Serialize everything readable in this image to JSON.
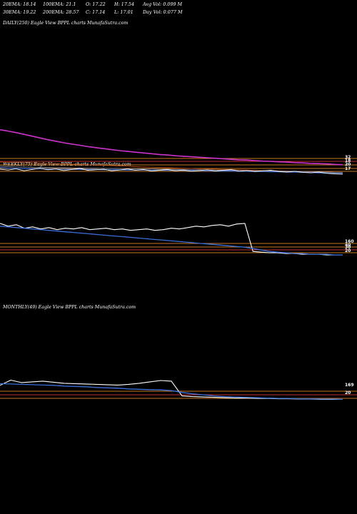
{
  "header": {
    "row1": [
      "20EMA: 18.14",
      "100EMA: 21.1",
      "O: 17.22",
      "H: 17.54",
      "Avg Vol: 0.099 M"
    ],
    "row2": [
      "30EMA: 19.22",
      "200EMA: 28.57",
      "C: 17.14",
      "L: 17.01",
      "Day Vol: 0.077 M"
    ]
  },
  "panels": {
    "daily": {
      "label": "DAILY(250) Eagle   View  BPPL  charts MunafaSutra.com"
    },
    "weekly": {
      "label": "WEEKLY(75) Eagle   View  BPPL  charts MunafaSutra.com"
    },
    "monthly": {
      "label": "MONTHLY(49) Eagle   View  BPPL  charts MunafaSutra.com"
    }
  },
  "colors": {
    "background": "#000000",
    "price": "#ffffff",
    "ema_short": "#3a6fd8",
    "ema_mid": "#8a8aa0",
    "ema_long": "#cc33cc",
    "ema_200": "#b04a1a",
    "level_line": "#c8781e",
    "level_line_red": "#c03030",
    "label_text": "#ffffff"
  },
  "chart_data": [
    {
      "type": "line",
      "title": "DAILY(250) Eagle   View  BPPL  charts MunafaSutra.com",
      "x_label": "",
      "y_label": "",
      "right_labels": [
        "32",
        "18",
        "20",
        "17"
      ],
      "series": [
        {
          "name": "",
          "values": [
            34.5,
            34.0,
            33.4,
            32.7,
            32.0,
            31.3,
            30.6,
            30.0,
            29.4,
            28.9,
            28.4,
            27.9,
            27.5,
            27.1,
            26.7,
            26.3,
            26.0,
            25.7,
            25.4,
            25.1,
            24.8,
            24.6,
            24.3,
            24.1,
            23.9,
            23.7,
            23.5,
            23.3,
            23.1,
            22.9,
            22.7,
            22.6,
            22.4,
            22.2,
            22.1,
            21.9,
            21.8,
            21.6,
            21.5,
            21.3,
            21.2,
            21.1,
            20.9,
            20.8
          ]
        },
        {
          "name": "",
          "values": [
            21.8,
            21.7,
            21.6,
            21.5,
            21.5,
            21.4,
            21.3,
            21.2,
            21.1,
            21.0,
            20.9,
            20.8,
            20.6,
            20.5,
            20.4,
            20.3,
            20.2,
            20.0,
            19.9,
            19.8,
            19.7,
            19.6,
            19.5,
            19.4,
            19.3,
            19.2,
            19.1,
            19.0,
            18.9,
            18.9,
            18.8,
            18.7,
            18.6,
            18.5,
            18.4,
            18.4,
            18.3,
            18.2,
            18.1,
            18.0,
            18.0,
            17.9,
            17.8,
            17.7
          ]
        },
        {
          "name": "",
          "values": [
            20.2,
            20.0,
            19.9,
            19.9,
            19.8,
            19.7,
            19.7,
            19.6,
            19.6,
            19.5,
            19.5,
            19.4,
            19.4,
            19.3,
            19.3,
            19.3,
            19.2,
            19.2,
            19.1,
            19.1,
            19.0,
            19.0,
            18.9,
            18.9,
            18.8,
            18.8,
            18.7,
            18.7,
            18.6,
            18.6,
            18.5,
            18.5,
            18.4,
            18.4,
            18.3,
            18.3,
            18.2,
            18.2,
            18.1,
            18.1,
            18.0,
            17.9,
            17.8,
            17.7
          ]
        },
        {
          "name": "",
          "values": [
            19.6,
            19.4,
            19.3,
            19.3,
            19.2,
            19.2,
            19.1,
            19.1,
            19.0,
            19.0,
            18.9,
            18.9,
            18.9,
            18.8,
            18.8,
            18.8,
            18.7,
            18.7,
            18.7,
            18.6,
            18.6,
            18.6,
            18.5,
            18.5,
            18.5,
            18.4,
            18.4,
            18.3,
            18.3,
            18.3,
            18.2,
            18.2,
            18.1,
            18.1,
            18.0,
            18.0,
            17.9,
            17.9,
            17.8,
            17.7,
            17.6,
            17.5,
            17.4,
            17.3
          ]
        },
        {
          "name": "",
          "values": [
            19.0,
            18.7,
            19.2,
            18.4,
            18.9,
            19.4,
            18.8,
            19.1,
            18.5,
            18.9,
            19.3,
            18.6,
            18.8,
            19.0,
            18.4,
            18.7,
            19.1,
            18.6,
            18.9,
            18.3,
            18.6,
            18.9,
            18.4,
            18.7,
            18.2,
            18.5,
            18.8,
            18.3,
            18.6,
            18.9,
            18.2,
            18.5,
            18.1,
            18.4,
            18.6,
            18.1,
            17.9,
            18.2,
            17.8,
            17.6,
            17.9,
            17.4,
            17.2,
            17.1
          ]
        }
      ]
    },
    {
      "type": "line",
      "title": "WEEKLY(75) Eagle   View  BPPL  charts MunafaSutra.com",
      "x_label": "",
      "y_label": "",
      "right_labels": [
        "160",
        "40",
        "30",
        "20"
      ],
      "series": [
        {
          "name": "",
          "values": [
            62,
            58,
            60,
            55,
            57,
            54,
            56,
            53,
            55,
            54,
            56,
            53,
            54,
            55,
            53,
            54,
            52,
            53,
            54,
            52,
            53,
            55,
            54,
            56,
            58,
            57,
            59,
            60,
            58,
            61,
            62,
            22,
            21,
            20,
            20,
            19,
            19,
            18,
            18,
            18,
            17,
            17,
            17
          ]
        },
        {
          "name": "",
          "values": [
            58,
            57,
            56,
            55,
            54,
            53,
            52,
            51,
            50,
            49,
            48,
            47,
            46,
            45,
            44,
            43,
            42,
            41,
            40,
            39,
            38,
            37,
            36,
            35,
            34,
            33,
            32,
            31,
            30,
            29,
            28,
            26,
            24,
            22,
            21,
            20,
            19,
            19,
            18,
            18,
            18,
            17,
            17
          ]
        }
      ]
    },
    {
      "type": "line",
      "title": "MONTHLY(49) Eagle   View  BPPL  charts MunafaSutra.com",
      "x_label": "",
      "y_label": "",
      "right_labels": [
        "169",
        "20"
      ],
      "series": [
        {
          "name": "",
          "values": [
            60,
            75,
            68,
            70,
            72,
            69,
            66,
            65,
            64,
            63,
            62,
            61,
            63,
            66,
            70,
            74,
            72,
            30,
            28,
            27,
            26,
            25,
            24,
            24,
            23,
            23,
            22,
            22,
            21,
            21,
            20,
            20,
            20
          ]
        },
        {
          "name": "",
          "values": [
            65,
            64,
            63,
            62,
            61,
            60,
            58,
            57,
            56,
            54,
            53,
            52,
            50,
            49,
            48,
            47,
            45,
            40,
            36,
            33,
            30,
            28,
            27,
            26,
            25,
            24,
            23,
            23,
            22,
            22,
            21,
            21,
            20
          ]
        }
      ]
    }
  ]
}
